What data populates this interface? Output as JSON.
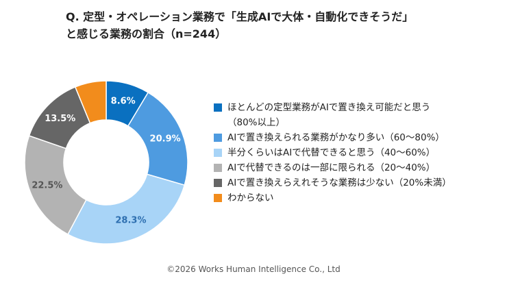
{
  "chart_data": {
    "type": "donut",
    "title": "Q. 定型・オペレーション業務で「生成AIで大体・自動化できそうだ」\nと感じる業務の割合（n=244）",
    "categories": [
      "ほとんどの定型業務がAIで置き換え可能だと思う\n（80%以上）",
      "AIで置き換えられる業務がかなり多い（60〜80%）",
      "半分くらいはAIで代替できると思う（40〜60%）",
      "AIで代替できるのは一部に限られる（20〜40%）",
      "AIで置き換えらえれそうな業務は少ない（20%未満）",
      "わからない"
    ],
    "values": [
      8.6,
      20.9,
      28.3,
      22.5,
      13.5,
      6.2
    ],
    "value_labels": [
      "8.6%",
      "20.9%",
      "28.3%",
      "22.5%",
      "13.5%",
      null
    ],
    "colors": [
      "#0a70c0",
      "#4e9be0",
      "#a8d4f7",
      "#b3b3b3",
      "#666666",
      "#f28c1c"
    ],
    "footer": "©2026 Works Human Intelligence Co., Ltd"
  }
}
